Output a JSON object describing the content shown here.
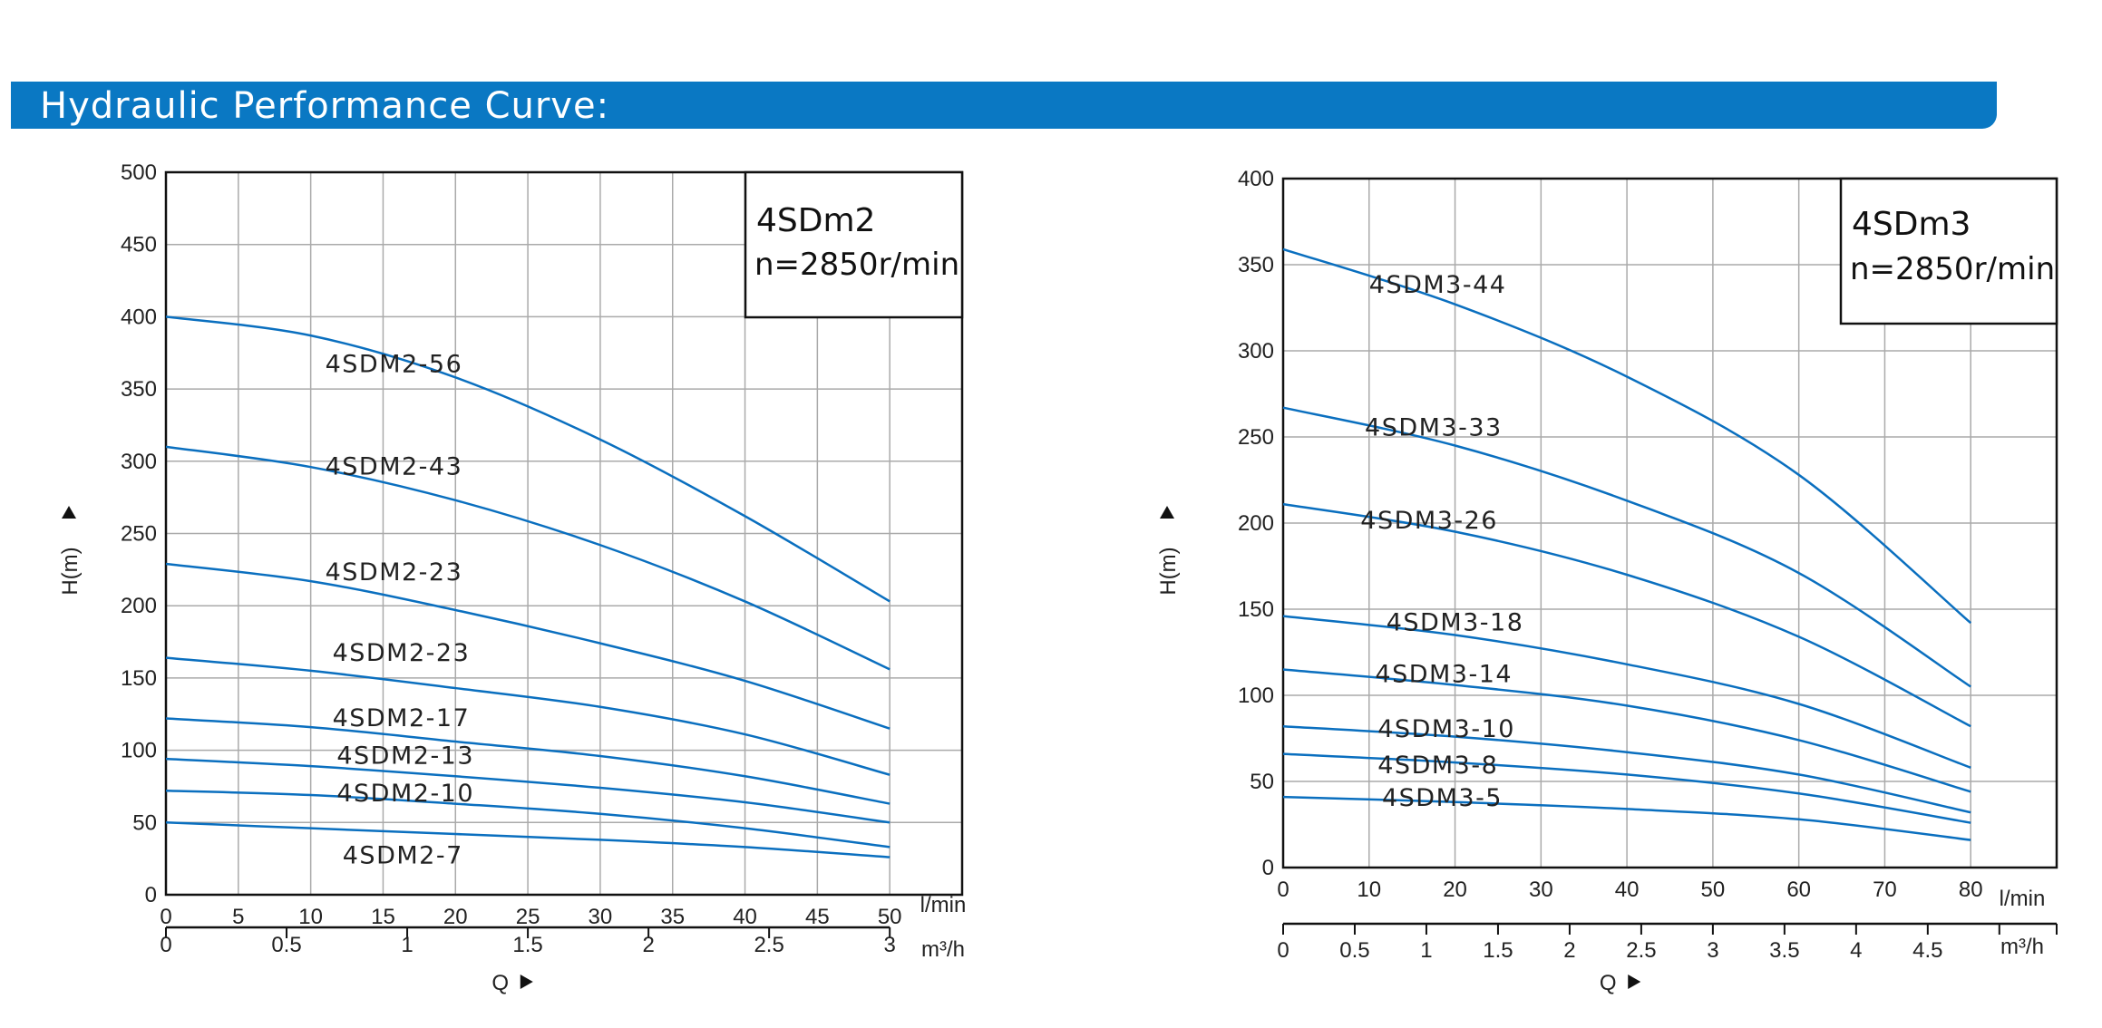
{
  "banner": {
    "title": "Hydraulic  Performance  Curve:"
  },
  "colors": {
    "banner": "#0a78c3",
    "curve": "#0a6fbf",
    "grid": "#aaaaaa",
    "frame": "#111111"
  },
  "chart_data": [
    {
      "type": "line",
      "title": "4SDm2",
      "subtitle": "n=2850r/min",
      "ylabel": "H(m)",
      "xlabel": "Q",
      "x_unit": "l/min",
      "x2_unit": "m³/h",
      "xlim": [
        0,
        55
      ],
      "ylim": [
        0,
        500
      ],
      "x_ticks": [
        0,
        5,
        10,
        15,
        20,
        25,
        30,
        35,
        40,
        45,
        50
      ],
      "y_ticks": [
        0,
        50,
        100,
        150,
        200,
        250,
        300,
        350,
        400,
        450,
        500
      ],
      "x2_ticks": [
        {
          "value": 0,
          "label": "0"
        },
        {
          "value": 0.5,
          "label": "0.5"
        },
        {
          "value": 1,
          "label": "1"
        },
        {
          "value": 1.5,
          "label": "1.5"
        },
        {
          "value": 2,
          "label": "2"
        },
        {
          "value": 2.5,
          "label": "2.5"
        },
        {
          "value": 3,
          "label": "3"
        }
      ],
      "x2_per_x": 0.06,
      "grid": true,
      "series": [
        {
          "name": "4SDM2-56",
          "label_at": [
            11,
            368
          ],
          "x": [
            0,
            10,
            20,
            30,
            40,
            50
          ],
          "y": [
            400,
            387,
            358,
            315,
            262,
            203
          ]
        },
        {
          "name": "4SDM2-43",
          "label_at": [
            11,
            297
          ],
          "x": [
            0,
            10,
            20,
            30,
            40,
            50
          ],
          "y": [
            310,
            296,
            273,
            242,
            203,
            156
          ]
        },
        {
          "name": "4SDM2-23",
          "label_at": [
            11,
            224
          ],
          "x": [
            0,
            10,
            20,
            30,
            40,
            50
          ],
          "y": [
            229,
            217,
            197,
            174,
            148,
            115
          ]
        },
        {
          "name": "4SDM2-23",
          "label_at": [
            11.5,
            168
          ],
          "x": [
            0,
            10,
            20,
            30,
            40,
            50
          ],
          "y": [
            164,
            155,
            143,
            130,
            111,
            83
          ]
        },
        {
          "name": "4SDM2-17",
          "label_at": [
            11.5,
            123
          ],
          "x": [
            0,
            10,
            20,
            30,
            40,
            50
          ],
          "y": [
            122,
            116,
            106,
            96,
            82,
            63
          ]
        },
        {
          "name": "4SDM2-13",
          "label_at": [
            11.8,
            97
          ],
          "x": [
            0,
            10,
            20,
            30,
            40,
            50
          ],
          "y": [
            94,
            89,
            82,
            74,
            64,
            50
          ]
        },
        {
          "name": "4SDM2-10",
          "label_at": [
            11.8,
            71
          ],
          "x": [
            0,
            10,
            20,
            30,
            40,
            50
          ],
          "y": [
            72,
            69,
            63,
            56,
            46,
            33
          ]
        },
        {
          "name": "4SDM2-7",
          "label_at": [
            12.2,
            28
          ],
          "x": [
            0,
            10,
            20,
            30,
            40,
            50
          ],
          "y": [
            50,
            46,
            42,
            38,
            33,
            26
          ]
        }
      ]
    },
    {
      "type": "line",
      "title": "4SDm3",
      "subtitle": "n=2850r/min",
      "ylabel": "H(m)",
      "xlabel": "Q",
      "x_unit": "l/min",
      "x2_unit": "m³/h",
      "xlim": [
        0,
        90
      ],
      "ylim": [
        0,
        400
      ],
      "x_ticks": [
        0,
        10,
        20,
        30,
        40,
        50,
        60,
        70,
        80
      ],
      "y_ticks": [
        0,
        50,
        100,
        150,
        200,
        250,
        300,
        350,
        400
      ],
      "x2_ticks": [
        {
          "value": 0,
          "label": "0"
        },
        {
          "value": 0.5,
          "label": "0.5"
        },
        {
          "value": 1,
          "label": "1"
        },
        {
          "value": 1.5,
          "label": "1.5"
        },
        {
          "value": 2,
          "label": "2"
        },
        {
          "value": 2.5,
          "label": "2.5"
        },
        {
          "value": 3,
          "label": "3"
        },
        {
          "value": 3.5,
          "label": "3.5"
        },
        {
          "value": 4,
          "label": "4"
        },
        {
          "value": 4.5,
          "label": "4.5"
        }
      ],
      "x2_extra_ticks": [
        5,
        5.4
      ],
      "x2_per_x": 0.06,
      "grid": true,
      "series": [
        {
          "name": "4SDM3-44",
          "label_at": [
            10,
            339
          ],
          "x": [
            0,
            20,
            40,
            60,
            80
          ],
          "y": [
            359,
            327,
            285,
            228,
            142
          ]
        },
        {
          "name": "4SDM3-33",
          "label_at": [
            9.5,
            256
          ],
          "x": [
            0,
            20,
            40,
            60,
            80
          ],
          "y": [
            267,
            245,
            213,
            171,
            105
          ]
        },
        {
          "name": "4SDM3-26",
          "label_at": [
            9,
            202
          ],
          "x": [
            0,
            20,
            40,
            60,
            80
          ],
          "y": [
            211,
            195,
            170,
            134,
            82
          ]
        },
        {
          "name": "4SDM3-18",
          "label_at": [
            12,
            143
          ],
          "x": [
            0,
            20,
            40,
            60,
            80
          ],
          "y": [
            146,
            135,
            118,
            95,
            58
          ]
        },
        {
          "name": "4SDM3-14",
          "label_at": [
            10.7,
            113
          ],
          "x": [
            0,
            20,
            40,
            60,
            80
          ],
          "y": [
            115,
            106,
            94,
            74,
            44
          ]
        },
        {
          "name": "4SDM3-10",
          "label_at": [
            11,
            81
          ],
          "x": [
            0,
            20,
            40,
            60,
            80
          ],
          "y": [
            82,
            76,
            67,
            54,
            32
          ]
        },
        {
          "name": "4SDM3-8",
          "label_at": [
            11,
            60
          ],
          "x": [
            0,
            20,
            40,
            60,
            80
          ],
          "y": [
            66,
            61,
            54,
            43,
            26
          ]
        },
        {
          "name": "4SDM3-5",
          "label_at": [
            11.5,
            41
          ],
          "x": [
            0,
            20,
            40,
            60,
            80
          ],
          "y": [
            41,
            38,
            34,
            28,
            16
          ]
        }
      ]
    }
  ]
}
